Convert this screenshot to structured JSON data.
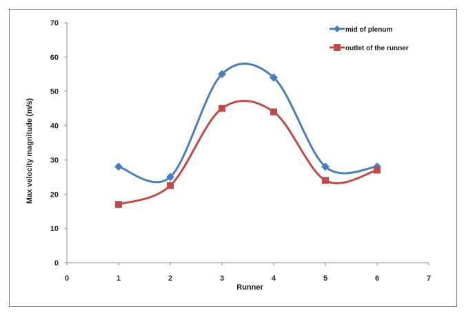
{
  "chart_data": {
    "type": "line",
    "title": "",
    "xlabel": "Runner",
    "ylabel": "Max velocity magnitude (m/s)",
    "xlim": [
      0,
      7
    ],
    "ylim": [
      0,
      70
    ],
    "xticks": [
      "0",
      "1",
      "2",
      "3",
      "4",
      "5",
      "6",
      "7"
    ],
    "yticks": [
      "0",
      "10",
      "20",
      "30",
      "40",
      "50",
      "60",
      "70"
    ],
    "x": [
      1,
      2,
      3,
      4,
      5,
      6
    ],
    "grid": false,
    "smooth": true,
    "legend_position": "top-right",
    "series": [
      {
        "name": "mid of plenum",
        "values": [
          28,
          25,
          55,
          54,
          28,
          28
        ],
        "color": "#4a7ebb",
        "marker": "diamond"
      },
      {
        "name": "outlet of the runner",
        "values": [
          17,
          22.5,
          45,
          44,
          24,
          27
        ],
        "color": "#be4b48",
        "marker": "square"
      }
    ]
  }
}
